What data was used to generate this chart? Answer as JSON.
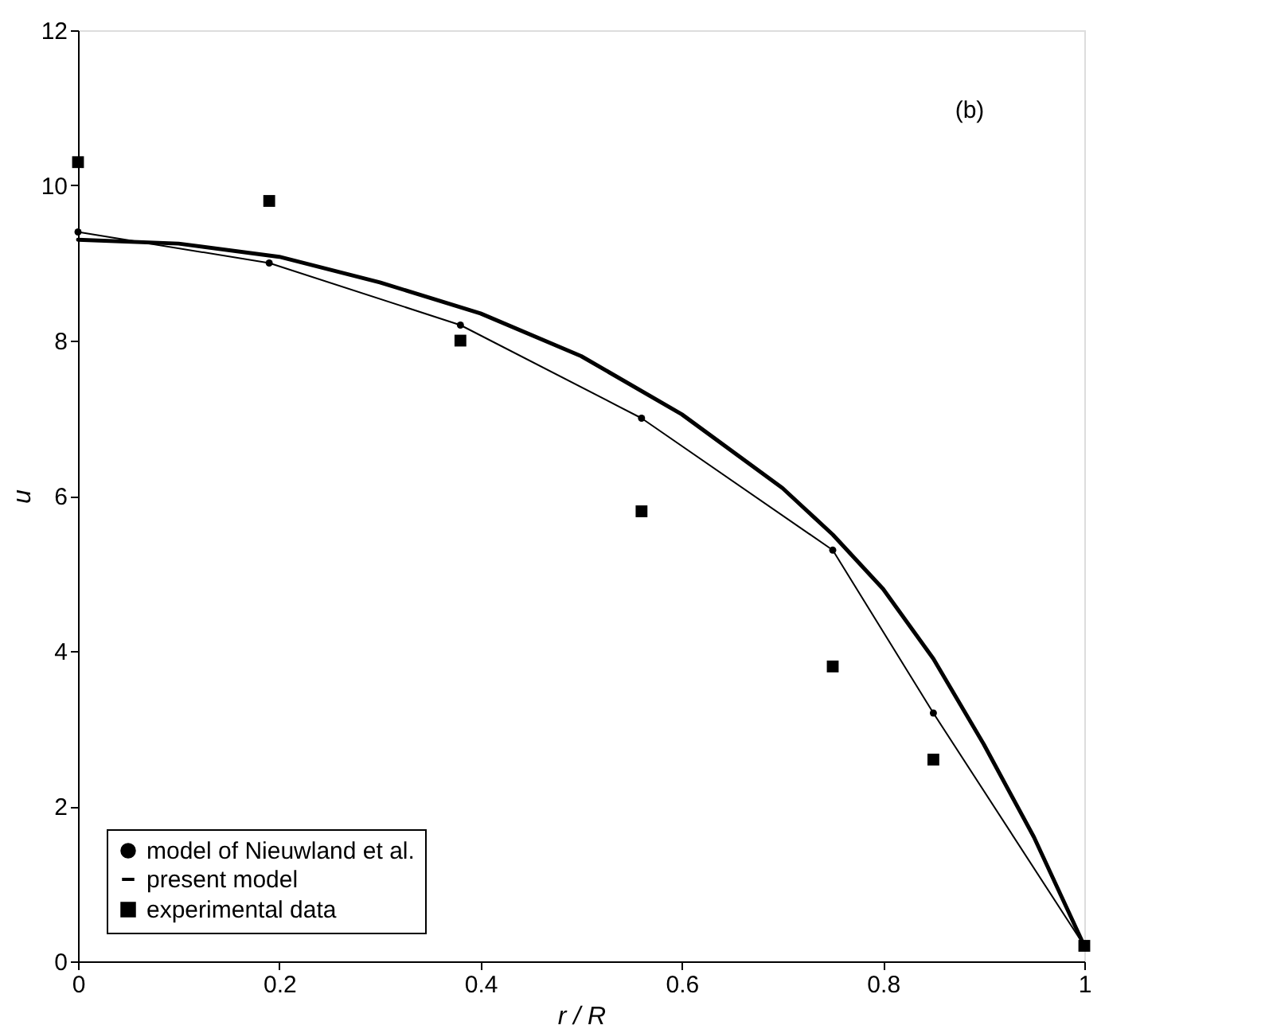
{
  "chart_data": {
    "type": "line",
    "xlabel": "r / R",
    "ylabel": "u",
    "xlim": [
      0,
      1
    ],
    "ylim": [
      0,
      12
    ],
    "xticks": [
      0,
      0.2,
      0.4,
      0.6,
      0.8,
      1
    ],
    "yticks": [
      0,
      2,
      4,
      6,
      8,
      10,
      12
    ],
    "grid": false,
    "legend": "bottom left",
    "annotations": [
      "(b)"
    ],
    "series": [
      {
        "name": "model of Nieuwland et al.",
        "marker": "circle",
        "color": "#000000",
        "x": [
          0,
          0.19,
          0.38,
          0.56,
          0.75,
          0.85,
          1
        ],
        "values": [
          9.4,
          9.0,
          8.2,
          7.0,
          5.3,
          3.2,
          0.2
        ]
      },
      {
        "name": "present model",
        "marker": "none",
        "color": "#000000",
        "x": [
          0,
          0.1,
          0.2,
          0.3,
          0.4,
          0.5,
          0.6,
          0.7,
          0.75,
          0.8,
          0.85,
          0.9,
          0.95,
          1
        ],
        "values": [
          9.3,
          9.25,
          9.08,
          8.75,
          8.35,
          7.8,
          7.05,
          6.1,
          5.5,
          4.8,
          3.9,
          2.8,
          1.6,
          0.2
        ]
      },
      {
        "name": "experimental data",
        "type": "scatter",
        "marker": "square",
        "color": "#000000",
        "x": [
          0,
          0.19,
          0.38,
          0.56,
          0.75,
          0.85,
          1
        ],
        "values": [
          10.3,
          9.8,
          8.0,
          5.8,
          3.8,
          2.6,
          0.2
        ]
      }
    ]
  }
}
